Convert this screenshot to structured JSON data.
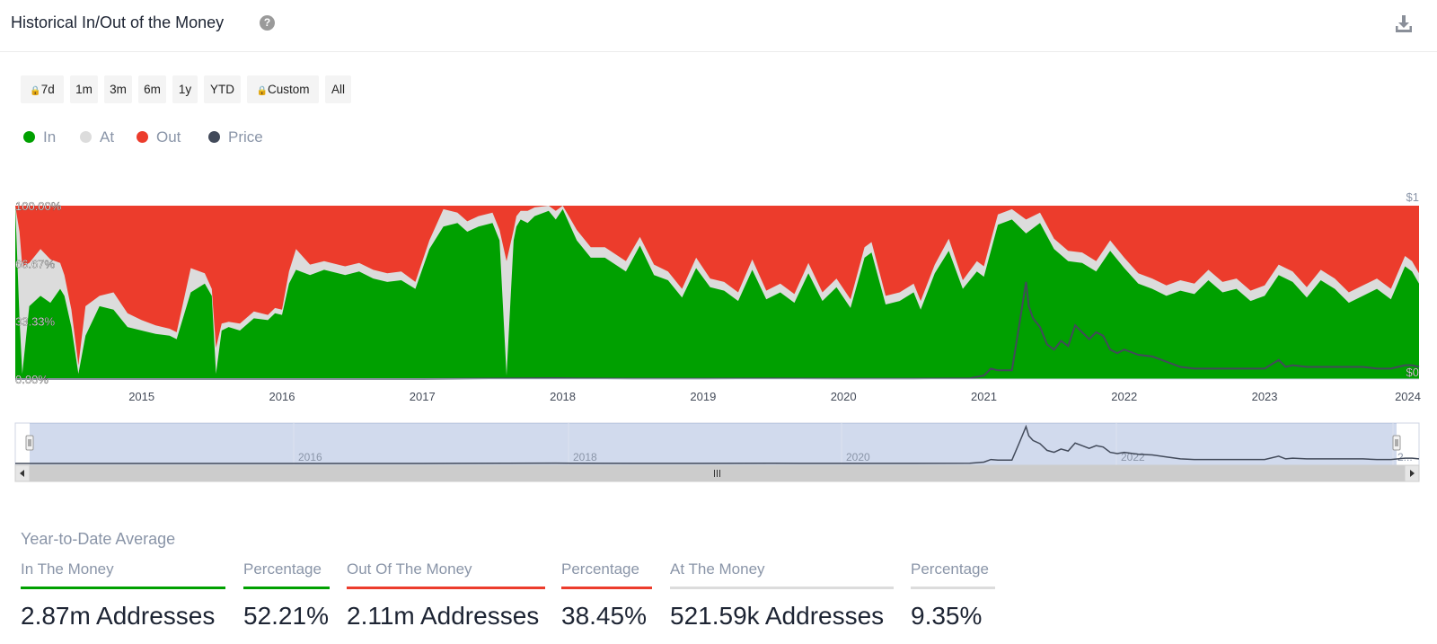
{
  "header": {
    "title": "Historical In/Out of the Money",
    "help_icon": "?",
    "download_icon": "download-icon"
  },
  "range_selector": {
    "buttons": [
      {
        "label": "7d",
        "locked": true
      },
      {
        "label": "1m",
        "locked": false
      },
      {
        "label": "3m",
        "locked": false
      },
      {
        "label": "6m",
        "locked": false
      },
      {
        "label": "1y",
        "locked": false
      },
      {
        "label": "YTD",
        "locked": false
      },
      {
        "label": "Custom",
        "locked": true
      },
      {
        "label": "All",
        "locked": false
      }
    ]
  },
  "legend": [
    {
      "label": "In",
      "color": "#00a000"
    },
    {
      "label": "At",
      "color": "#dcdcdc"
    },
    {
      "label": "Out",
      "color": "#ec3c2c"
    },
    {
      "label": "Price",
      "color": "#424a5a"
    }
  ],
  "chart_data": {
    "type": "area",
    "stacked_percent": true,
    "y_ticks": [
      "0.00%",
      "33.33%",
      "66.67%",
      "100.00%"
    ],
    "ylim": [
      0,
      100
    ],
    "price_axis_labels": [
      "$1",
      "$0"
    ],
    "price_ylim": [
      0,
      1
    ],
    "x_ticks": [
      "2015",
      "2016",
      "2017",
      "2018",
      "2019",
      "2020",
      "2021",
      "2022",
      "2023",
      "2024"
    ],
    "xlim": [
      2014.1,
      2024.1
    ],
    "series": [
      {
        "name": "In",
        "color": "#00a000",
        "x": [
          2014.1,
          2014.13,
          2014.15,
          2014.2,
          2014.28,
          2014.35,
          2014.42,
          2014.45,
          2014.5,
          2014.55,
          2014.6,
          2014.7,
          2014.8,
          2014.9,
          2015.0,
          2015.1,
          2015.2,
          2015.25,
          2015.35,
          2015.45,
          2015.5,
          2015.53,
          2015.57,
          2015.62,
          2015.7,
          2015.8,
          2015.9,
          2015.95,
          2016.0,
          2016.05,
          2016.1,
          2016.2,
          2016.3,
          2016.45,
          2016.55,
          2016.65,
          2016.75,
          2016.85,
          2016.95,
          2017.05,
          2017.15,
          2017.25,
          2017.32,
          2017.4,
          2017.5,
          2017.55,
          2017.6,
          2017.65,
          2017.67,
          2017.7,
          2017.75,
          2017.8,
          2017.9,
          2017.95,
          2018.0,
          2018.1,
          2018.2,
          2018.3,
          2018.45,
          2018.55,
          2018.65,
          2018.75,
          2018.85,
          2018.95,
          2019.05,
          2019.15,
          2019.25,
          2019.35,
          2019.45,
          2019.55,
          2019.65,
          2019.75,
          2019.85,
          2019.95,
          2020.05,
          2020.15,
          2020.2,
          2020.3,
          2020.4,
          2020.5,
          2020.55,
          2020.65,
          2020.75,
          2020.85,
          2020.95,
          2021.0,
          2021.1,
          2021.2,
          2021.3,
          2021.4,
          2021.5,
          2021.6,
          2021.7,
          2021.8,
          2021.9,
          2022.0,
          2022.1,
          2022.2,
          2022.3,
          2022.4,
          2022.5,
          2022.6,
          2022.7,
          2022.8,
          2022.9,
          2023.0,
          2023.1,
          2023.2,
          2023.3,
          2023.4,
          2023.5,
          2023.6,
          2023.7,
          2023.8,
          2023.9,
          2024.0,
          2024.05,
          2024.1
        ],
        "values": [
          100,
          35,
          3,
          42,
          48,
          44,
          52,
          48,
          30,
          3,
          25,
          42,
          40,
          30,
          28,
          26,
          25,
          23,
          50,
          55,
          48,
          3,
          28,
          30,
          28,
          35,
          34,
          38,
          37,
          55,
          63,
          60,
          63,
          60,
          62,
          58,
          56,
          57,
          52,
          75,
          88,
          90,
          85,
          88,
          90,
          80,
          2,
          80,
          88,
          92,
          90,
          94,
          97,
          92,
          98,
          80,
          70,
          70,
          62,
          77,
          60,
          57,
          47,
          64,
          53,
          51,
          45,
          63,
          46,
          50,
          44,
          61,
          45,
          53,
          41,
          70,
          73,
          43,
          45,
          50,
          40,
          61,
          74,
          52,
          62,
          59,
          89,
          92,
          84,
          90,
          75,
          68,
          67,
          62,
          74,
          64,
          55,
          52,
          48,
          51,
          49,
          57,
          50,
          52,
          45,
          48,
          60,
          56,
          47,
          57,
          52,
          44,
          48,
          52,
          46,
          65,
          62,
          55
        ]
      },
      {
        "name": "At",
        "color": "#dcdcdc",
        "x": [
          2014.1,
          2014.13,
          2014.15,
          2014.2,
          2014.28,
          2014.35,
          2014.42,
          2014.45,
          2014.5,
          2014.55,
          2014.6,
          2014.7,
          2014.8,
          2014.9,
          2015.0,
          2015.1,
          2015.2,
          2015.25,
          2015.35,
          2015.45,
          2015.5,
          2015.53,
          2015.57,
          2015.62,
          2015.7,
          2015.8,
          2015.9,
          2015.95,
          2016.0,
          2016.05,
          2016.1,
          2016.2,
          2016.3,
          2016.45,
          2016.55,
          2016.65,
          2016.75,
          2016.85,
          2016.95,
          2017.05,
          2017.15,
          2017.25,
          2017.32,
          2017.4,
          2017.5,
          2017.55,
          2017.6,
          2017.65,
          2017.67,
          2017.7,
          2017.75,
          2017.8,
          2017.9,
          2017.95,
          2018.0,
          2018.1,
          2018.2,
          2018.3,
          2018.45,
          2018.55,
          2018.65,
          2018.75,
          2018.85,
          2018.95,
          2019.05,
          2019.15,
          2019.25,
          2019.35,
          2019.45,
          2019.55,
          2019.65,
          2019.75,
          2019.85,
          2019.95,
          2020.05,
          2020.15,
          2020.2,
          2020.3,
          2020.4,
          2020.5,
          2020.55,
          2020.65,
          2020.75,
          2020.85,
          2020.95,
          2021.0,
          2021.1,
          2021.2,
          2021.3,
          2021.4,
          2021.5,
          2021.6,
          2021.7,
          2021.8,
          2021.9,
          2022.0,
          2022.1,
          2022.2,
          2022.3,
          2022.4,
          2022.5,
          2022.6,
          2022.7,
          2022.8,
          2022.9,
          2023.0,
          2023.1,
          2023.2,
          2023.3,
          2023.4,
          2023.5,
          2023.6,
          2023.7,
          2023.8,
          2023.9,
          2024.0,
          2024.05,
          2024.1
        ],
        "values": [
          0,
          50,
          62,
          25,
          27,
          25,
          15,
          12,
          10,
          5,
          17,
          6,
          10,
          8,
          6,
          5,
          4,
          4,
          14,
          6,
          4,
          15,
          4,
          3,
          4,
          4,
          3,
          3,
          3,
          7,
          12,
          6,
          5,
          5,
          5,
          5,
          5,
          5,
          4,
          5,
          10,
          6,
          6,
          6,
          6,
          6,
          66,
          6,
          6,
          5,
          7,
          5,
          3,
          5,
          2,
          6,
          6,
          6,
          6,
          5,
          6,
          5,
          5,
          6,
          5,
          5,
          5,
          6,
          5,
          5,
          5,
          6,
          5,
          5,
          5,
          6,
          6,
          5,
          5,
          5,
          5,
          5,
          7,
          5,
          6,
          6,
          6,
          6,
          8,
          6,
          6,
          6,
          6,
          6,
          6,
          6,
          6,
          6,
          6,
          6,
          6,
          6,
          6,
          6,
          6,
          6,
          6,
          6,
          6,
          6,
          6,
          6,
          6,
          6,
          6,
          6,
          6,
          6
        ]
      },
      {
        "name": "Out",
        "color": "#ec3c2c",
        "x": [
          2014.1,
          2024.1
        ],
        "values": "remainder to 100%"
      },
      {
        "name": "Price",
        "color": "#424a5a",
        "x": [
          2014.1,
          2017.0,
          2017.95,
          2018.1,
          2018.5,
          2019.0,
          2019.5,
          2020.0,
          2020.5,
          2020.9,
          2021.0,
          2021.05,
          2021.1,
          2021.2,
          2021.25,
          2021.3,
          2021.32,
          2021.35,
          2021.4,
          2021.45,
          2021.5,
          2021.55,
          2021.6,
          2021.65,
          2021.7,
          2021.75,
          2021.8,
          2021.85,
          2021.9,
          2021.95,
          2022.0,
          2022.1,
          2022.2,
          2022.3,
          2022.4,
          2022.5,
          2022.6,
          2022.7,
          2022.8,
          2022.9,
          2023.0,
          2023.1,
          2023.15,
          2023.2,
          2023.3,
          2023.4,
          2023.5,
          2023.6,
          2023.7,
          2023.8,
          2023.9,
          2024.0,
          2024.05,
          2024.1
        ],
        "values": [
          0.0,
          0.0,
          0.005,
          0.003,
          0.002,
          0.002,
          0.003,
          0.002,
          0.002,
          0.004,
          0.02,
          0.06,
          0.05,
          0.05,
          0.3,
          0.56,
          0.42,
          0.35,
          0.3,
          0.2,
          0.17,
          0.22,
          0.19,
          0.31,
          0.27,
          0.23,
          0.27,
          0.25,
          0.17,
          0.15,
          0.17,
          0.14,
          0.13,
          0.1,
          0.07,
          0.06,
          0.06,
          0.06,
          0.06,
          0.06,
          0.06,
          0.11,
          0.07,
          0.08,
          0.07,
          0.07,
          0.07,
          0.07,
          0.07,
          0.06,
          0.06,
          0.08,
          0.08,
          0.07
        ]
      }
    ],
    "navigator": {
      "labels": [
        "2016",
        "2018",
        "2020",
        "2022",
        "2..."
      ]
    }
  },
  "stats": {
    "title": "Year-to-Date Average",
    "columns": [
      {
        "label": "In The Money",
        "value": "2.87m Addresses",
        "color": "#00a000"
      },
      {
        "label": "Percentage",
        "value": "52.21%",
        "color": "#00a000"
      },
      {
        "label": "Out Of The Money",
        "value": "2.11m Addresses",
        "color": "#ec3c2c"
      },
      {
        "label": "Percentage",
        "value": "38.45%",
        "color": "#ec3c2c"
      },
      {
        "label": "At The Money",
        "value": "521.59k Addresses",
        "color": "#dcdcdc"
      },
      {
        "label": "Percentage",
        "value": "9.35%",
        "color": "#dcdcdc"
      }
    ]
  }
}
